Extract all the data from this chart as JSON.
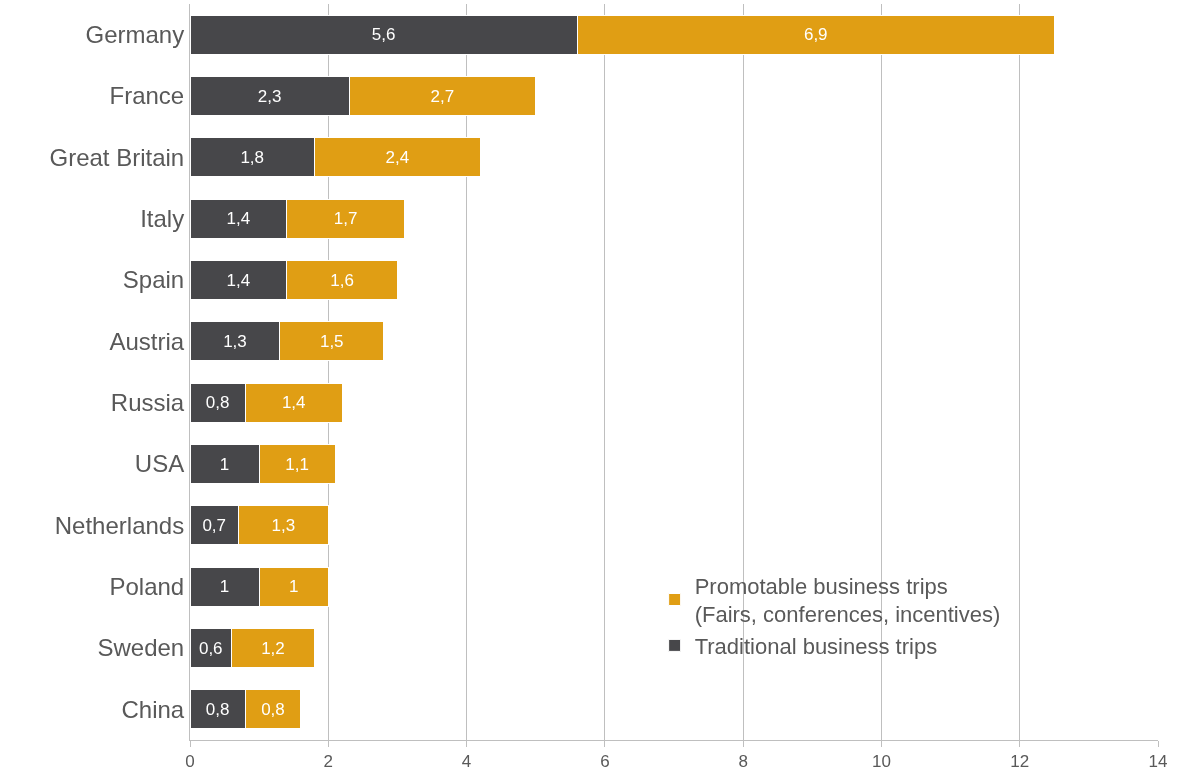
{
  "chart_data": {
    "type": "bar",
    "orientation": "horizontal",
    "stacked": true,
    "categories": [
      "Germany",
      "France",
      "Great Britain",
      "Italy",
      "Spain",
      "Austria",
      "Russia",
      "USA",
      "Netherlands",
      "Poland",
      "Sweden",
      "China"
    ],
    "series": [
      {
        "name": "Traditional business trips",
        "color": "#47474a",
        "values": [
          5.6,
          2.3,
          1.8,
          1.4,
          1.4,
          1.3,
          0.8,
          1,
          0.7,
          1,
          0.6,
          0.8
        ],
        "value_labels": [
          "5,6",
          "2,3",
          "1,8",
          "1,4",
          "1,4",
          "1,3",
          "0,8",
          "1",
          "0,7",
          "1",
          "0,6",
          "0,8"
        ]
      },
      {
        "name": "Promotable business trips\n(Fairs, conferences, incentives)",
        "color": "#e09e14",
        "values": [
          6.9,
          2.7,
          2.4,
          1.7,
          1.6,
          1.5,
          1.4,
          1.1,
          1.3,
          1,
          1.2,
          0.8
        ],
        "value_labels": [
          "6,9",
          "2,7",
          "2,4",
          "1,7",
          "1,6",
          "1,5",
          "1,4",
          "1,1",
          "1,3",
          "1",
          "1,2",
          "0,8"
        ]
      }
    ],
    "xlim": [
      0,
      14
    ],
    "xticks": [
      0,
      2,
      4,
      6,
      8,
      10,
      12,
      14
    ],
    "grid": "x",
    "legend": "bottom right"
  }
}
